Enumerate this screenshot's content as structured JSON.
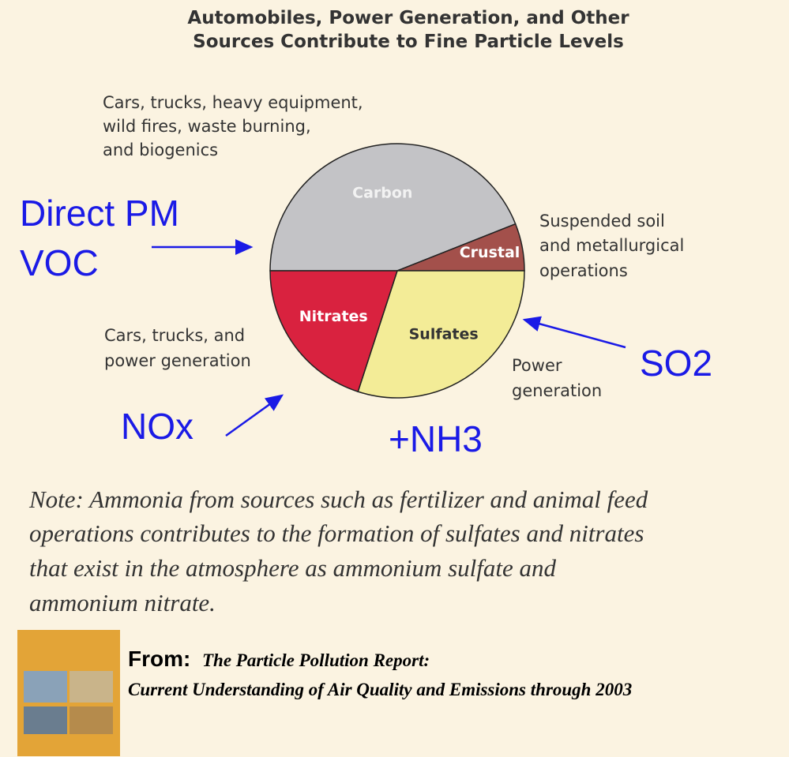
{
  "chart_data": {
    "type": "pie",
    "title": [
      "Automobiles, Power Generation, and Other",
      "Sources Contribute to Fine Particle Levels"
    ],
    "categories": [
      "Carbon",
      "Crustal",
      "Sulfates",
      "Nitrates"
    ],
    "values": [
      44,
      6,
      30,
      20
    ],
    "colors": [
      "#c3c3c6",
      "#a3504b",
      "#f3ec97",
      "#d9223f"
    ],
    "annotations": {
      "carbon_sources": [
        "Cars, trucks, heavy equipment,",
        "wild fires, waste burning,",
        "and biogenics"
      ],
      "crustal_sources": [
        "Suspended soil",
        "and metallurgical",
        "operations"
      ],
      "nitrates_sources": [
        "Cars, trucks, and",
        "power generation"
      ],
      "sulfates_sources": [
        "Power",
        "generation"
      ],
      "direct_pm": [
        "Direct PM",
        "VOC"
      ],
      "so2": "SO2",
      "nox": "NOx",
      "nh3": "+NH3"
    }
  },
  "note": [
    "Note: Ammonia from sources such as fertilizer and animal feed",
    "operations contributes to the formation of sulfates and nitrates",
    "that exist in the atmosphere as ammonium sulfate and",
    "ammonium nitrate."
  ],
  "source": {
    "prefix": "From:",
    "title_line1": "The Particle Pollution Report:",
    "title_line2": "Current Understanding of Air Quality and Emissions through 2003"
  }
}
